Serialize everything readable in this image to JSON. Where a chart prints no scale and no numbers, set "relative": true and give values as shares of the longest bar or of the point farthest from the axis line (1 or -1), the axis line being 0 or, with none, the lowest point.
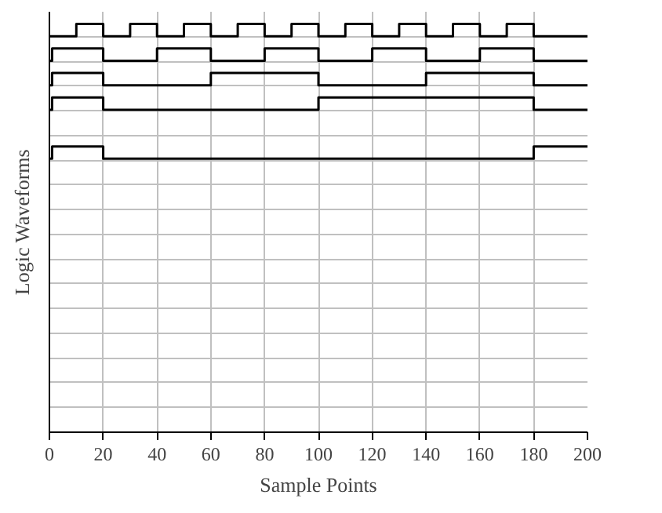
{
  "chart_data": {
    "type": "step",
    "xlabel": "Sample Points",
    "ylabel": "Logic Waveforms",
    "xlim": [
      0,
      200
    ],
    "xticks": [
      0,
      20,
      40,
      60,
      80,
      100,
      120,
      140,
      160,
      180,
      200
    ],
    "relative": true,
    "grid": true,
    "series": [
      {
        "color": "#000000",
        "x": [
          0,
          10,
          20,
          30,
          40,
          50,
          60,
          70,
          80,
          90,
          100,
          110,
          120,
          130,
          140,
          150,
          160,
          170,
          180,
          200
        ],
        "values": [
          0.97,
          1,
          0.97,
          1,
          0.97,
          1,
          0.97,
          1,
          0.97,
          1,
          0.97,
          1,
          0.97,
          1,
          0.97,
          1,
          0.97,
          1,
          0.97,
          0.97
        ]
      },
      {
        "color": "#000000",
        "x": [
          0,
          1,
          20,
          40,
          60,
          80,
          100,
          120,
          140,
          160,
          180,
          200
        ],
        "values": [
          0.91,
          0.94,
          0.91,
          0.94,
          0.91,
          0.94,
          0.91,
          0.94,
          0.91,
          0.94,
          0.91,
          0.91
        ]
      },
      {
        "color": "#000000",
        "x": [
          0,
          1,
          20,
          60,
          100,
          140,
          180,
          200
        ],
        "values": [
          0.85,
          0.88,
          0.85,
          0.88,
          0.85,
          0.88,
          0.85,
          0.85
        ]
      },
      {
        "color": "#000000",
        "x": [
          0,
          1,
          20,
          100,
          180,
          200
        ],
        "values": [
          0.79,
          0.82,
          0.79,
          0.82,
          0.79,
          0.79
        ]
      },
      {
        "color": "#000000",
        "x": [
          0,
          1,
          20,
          180,
          200
        ],
        "values": [
          0.67,
          0.7,
          0.67,
          0.7,
          0.7
        ]
      }
    ]
  }
}
